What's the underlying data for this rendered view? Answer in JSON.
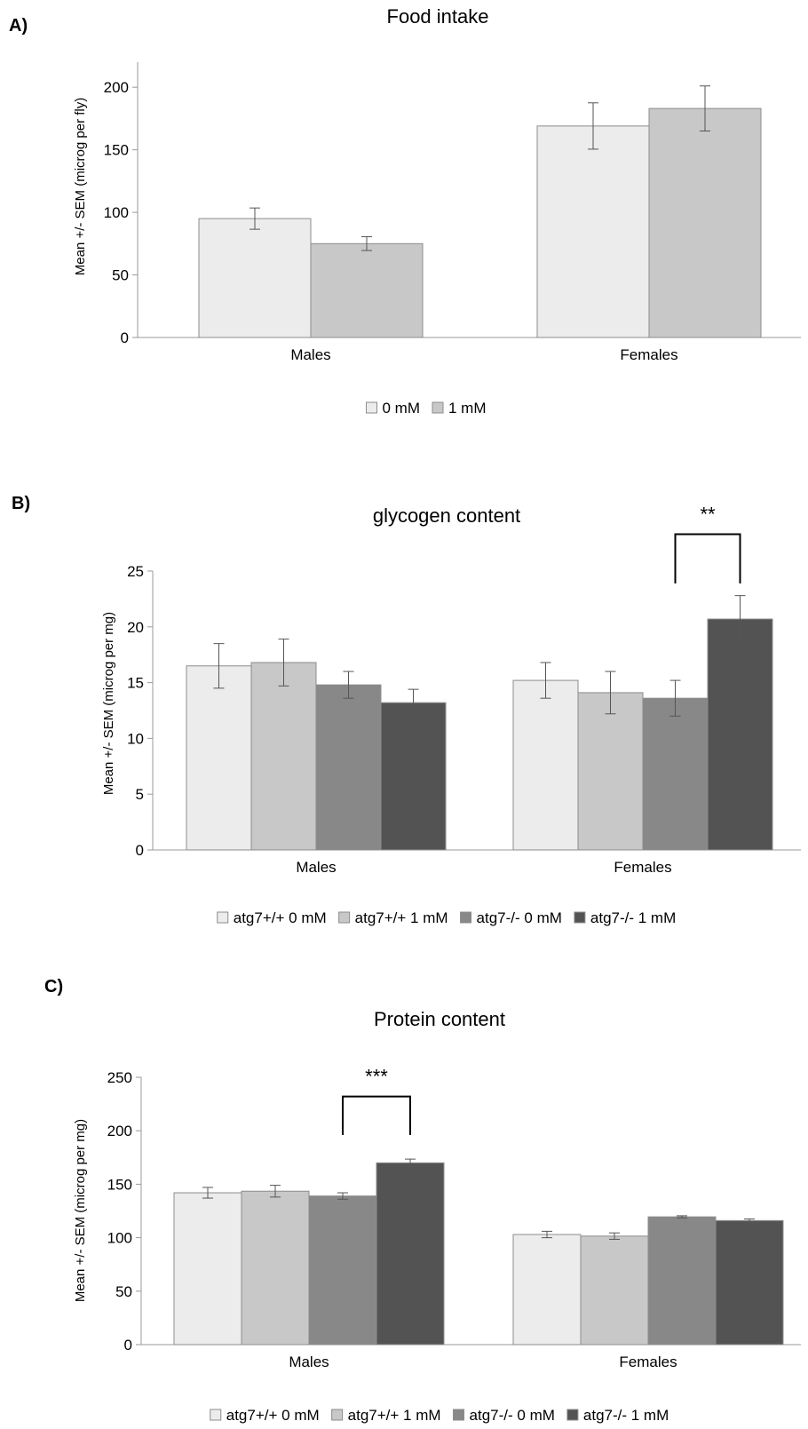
{
  "chart_data": [
    {
      "panel": "A)",
      "type": "bar",
      "title": "Food intake",
      "ylabel": "Mean +/- SEM (microg per fly)",
      "xlabel": "",
      "ylim": [
        0,
        220
      ],
      "yticks": [
        0,
        50,
        100,
        150,
        200
      ],
      "categories": [
        "Males",
        "Females"
      ],
      "legend_position": "bottom",
      "grid": false,
      "series": [
        {
          "name": "0 mM",
          "color": "#ececec",
          "values": [
            95,
            169
          ],
          "err": [
            8.5,
            18.5
          ]
        },
        {
          "name": "1 mM",
          "color": "#c8c8c8",
          "values": [
            75,
            183
          ],
          "err": [
            5.5,
            18
          ]
        }
      ],
      "significance": []
    },
    {
      "panel": "B)",
      "type": "bar",
      "title": "glycogen content",
      "ylabel": "Mean +/- SEM (microg per mg)",
      "xlabel": "",
      "ylim": [
        0,
        25
      ],
      "yticks": [
        0,
        5,
        10,
        15,
        20,
        25
      ],
      "categories": [
        "Males",
        "Females"
      ],
      "legend_position": "bottom",
      "grid": false,
      "series": [
        {
          "name": "atg7+/+ 0 mM",
          "color": "#ececec",
          "values": [
            16.5,
            15.2
          ],
          "err": [
            2.0,
            1.6
          ]
        },
        {
          "name": "atg7+/+ 1 mM",
          "color": "#c8c8c8",
          "values": [
            16.8,
            14.1
          ],
          "err": [
            2.1,
            1.9
          ]
        },
        {
          "name": "atg7-/- 0 mM",
          "color": "#888888",
          "values": [
            14.8,
            13.6
          ],
          "err": [
            1.2,
            1.6
          ]
        },
        {
          "name": "atg7-/- 1 mM",
          "color": "#535353",
          "values": [
            13.2,
            20.7
          ],
          "err": [
            1.2,
            2.1
          ]
        }
      ],
      "significance": [
        {
          "label": "**",
          "category": 1,
          "from_series": 2,
          "to_series": 3,
          "bracket_top": 28.3,
          "bracket_bottom": 23.9
        }
      ]
    },
    {
      "panel": "C)",
      "type": "bar",
      "title": "Protein content",
      "ylabel": "Mean +/- SEM (microg per mg)",
      "xlabel": "",
      "ylim": [
        0,
        250
      ],
      "yticks": [
        0,
        50,
        100,
        150,
        200,
        250
      ],
      "categories": [
        "Males",
        "Females"
      ],
      "legend_position": "bottom",
      "grid": false,
      "series": [
        {
          "name": "atg7+/+ 0 mM",
          "color": "#ececec",
          "values": [
            142,
            103
          ],
          "err": [
            5,
            3
          ]
        },
        {
          "name": "atg7+/+ 1 mM",
          "color": "#c8c8c8",
          "values": [
            143.5,
            101.5
          ],
          "err": [
            5.5,
            3
          ]
        },
        {
          "name": "atg7-/- 0 mM",
          "color": "#888888",
          "values": [
            139,
            119.5
          ],
          "err": [
            3,
            1
          ]
        },
        {
          "name": "atg7-/- 1 mM",
          "color": "#535353",
          "values": [
            170,
            116
          ],
          "err": [
            3.5,
            1.5
          ]
        }
      ],
      "significance": [
        {
          "label": "***",
          "category": 0,
          "from_series": 2,
          "to_series": 3,
          "bracket_top": 232,
          "bracket_bottom": 196
        }
      ]
    }
  ]
}
